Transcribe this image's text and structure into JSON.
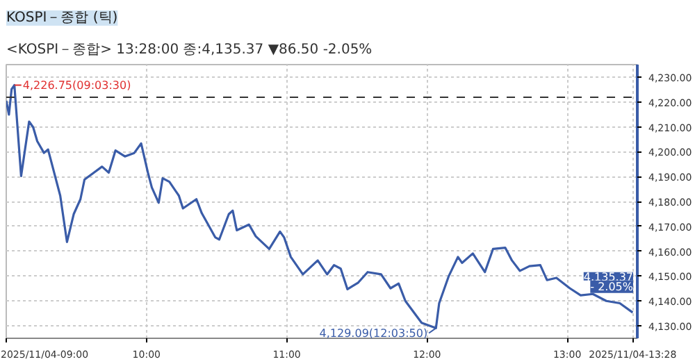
{
  "chart_data": {
    "type": "line",
    "title": "KOSPI－종합 (틱)",
    "subtitle": "<KOSPI－종합> 13:28:00 종:4,135.37 ▼86.50 -2.05%",
    "x": [
      9.0,
      9.019,
      9.038,
      9.058,
      9.106,
      9.163,
      9.192,
      9.221,
      9.269,
      9.298,
      9.385,
      9.433,
      9.481,
      9.529,
      9.558,
      9.625,
      9.683,
      9.731,
      9.779,
      9.846,
      9.913,
      9.962,
      10.01,
      10.038,
      10.087,
      10.115,
      10.163,
      10.231,
      10.26,
      10.356,
      10.394,
      10.49,
      10.519,
      10.587,
      10.615,
      10.644,
      10.731,
      10.779,
      10.875,
      10.952,
      10.981,
      11.029,
      11.115,
      11.221,
      11.288,
      11.337,
      11.385,
      11.433,
      11.51,
      11.577,
      11.673,
      11.74,
      11.798,
      11.846,
      11.962,
      12.064,
      12.087,
      12.154,
      12.221,
      12.25,
      12.327,
      12.413,
      12.471,
      12.558,
      12.606,
      12.663,
      12.731,
      12.808,
      12.856,
      12.923,
      13.019,
      13.096,
      13.183,
      13.279,
      13.375,
      13.467
    ],
    "series": [
      {
        "color": "#3a5ca8",
        "values": [
          4220.5,
          4214.9,
          4225.1,
          4226.75,
          4190.2,
          4212.1,
          4209.8,
          4204.2,
          4199.5,
          4200.9,
          4182.3,
          4163.7,
          4174.9,
          4180.9,
          4188.8,
          4191.6,
          4194.0,
          4191.6,
          4200.5,
          4198.1,
          4199.5,
          4203.3,
          4191.6,
          4185.6,
          4179.5,
          4189.3,
          4187.9,
          4182.3,
          4177.2,
          4180.9,
          4175.3,
          4165.6,
          4164.7,
          4174.9,
          4176.3,
          4168.4,
          4170.7,
          4166.0,
          4160.9,
          4167.9,
          4165.6,
          4157.7,
          4150.7,
          4156.3,
          4150.7,
          4154.4,
          4153.0,
          4144.7,
          4147.4,
          4151.6,
          4150.7,
          4145.1,
          4147.0,
          4140.0,
          4131.2,
          4129.09,
          4139.1,
          4149.8,
          4157.7,
          4155.3,
          4159.1,
          4151.6,
          4160.9,
          4161.4,
          4156.3,
          4152.1,
          4154.0,
          4154.4,
          4148.4,
          4149.3,
          4145.1,
          4142.3,
          4142.8,
          4140.0,
          4139.1,
          4135.37
        ]
      }
    ],
    "xlim": [
      9.0,
      13.5
    ],
    "ylim": [
      4125,
      4235
    ],
    "xticks": [
      {
        "value": 9,
        "label": "2025/11/04-09:00"
      },
      {
        "value": 10,
        "label": "10:00"
      },
      {
        "value": 11,
        "label": "11:00"
      },
      {
        "value": 12,
        "label": "12:00"
      },
      {
        "value": 13,
        "label": "13:00"
      },
      {
        "value": 13.467,
        "label": "2025/11/04-13:28"
      }
    ],
    "yticks": [
      {
        "value": 4130,
        "label": "4,130.00"
      },
      {
        "value": 4140,
        "label": "4,140.00"
      },
      {
        "value": 4150,
        "label": "4,150.00"
      },
      {
        "value": 4160,
        "label": "4,160.00"
      },
      {
        "value": 4170,
        "label": "4,170.00"
      },
      {
        "value": 4180,
        "label": "4,180.00"
      },
      {
        "value": 4190,
        "label": "4,190.00"
      },
      {
        "value": 4200,
        "label": "4,200.00"
      },
      {
        "value": 4210,
        "label": "4,210.00"
      },
      {
        "value": 4220,
        "label": "4,220.00"
      },
      {
        "value": 4230,
        "label": "4,230.00"
      }
    ],
    "ref_lines": [
      {
        "axis": "y",
        "value": 4221.87,
        "color": "#333333",
        "line_style": "dashed"
      }
    ],
    "annotations": [
      {
        "text": "4,226.75(09:03:30)",
        "x": 9.058,
        "y": 4226.75
      },
      {
        "text": "4,129.09(12:03:50)",
        "x": 12.064,
        "y": 4129.09
      },
      {
        "text": "4,135.37",
        "x": 13.467,
        "y": 4135.37
      },
      {
        "text": "- 2.05%",
        "x": 13.467,
        "y": 4135.37
      }
    ],
    "grid": true,
    "line_style": "solid",
    "marker": "none"
  }
}
